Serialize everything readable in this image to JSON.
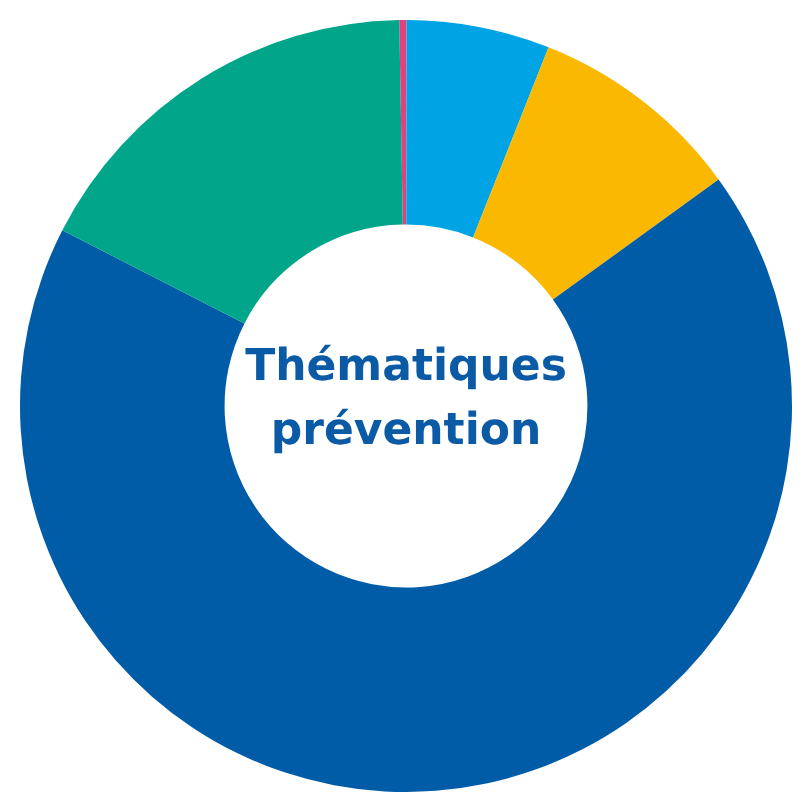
{
  "chart_data": {
    "type": "donut",
    "title": "Thématiques prévention",
    "categories": [
      null,
      null,
      null,
      null,
      null
    ],
    "values": [
      0.3,
      6,
      9,
      67.5,
      17.2
    ],
    "colors": [
      "#e0427f",
      "#00a3e3",
      "#fbb800",
      "#015ca8",
      "#00a58a"
    ],
    "legend": false
  }
}
